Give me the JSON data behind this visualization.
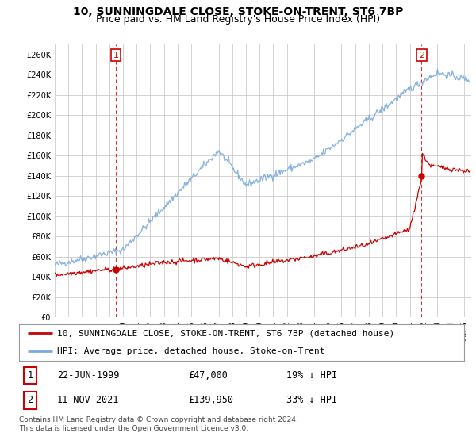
{
  "title": "10, SUNNINGDALE CLOSE, STOKE-ON-TRENT, ST6 7BP",
  "subtitle": "Price paid vs. HM Land Registry's House Price Index (HPI)",
  "ylabel_vals": [
    0,
    20000,
    40000,
    60000,
    80000,
    100000,
    120000,
    140000,
    160000,
    180000,
    200000,
    220000,
    240000,
    260000
  ],
  "ylim": [
    0,
    270000
  ],
  "xlim_start": 1995.0,
  "xlim_end": 2025.5,
  "bg_color": "#ffffff",
  "grid_color": "#cccccc",
  "hpi_color": "#7aaadd",
  "sale_color": "#cc0000",
  "purchase1_date": 1999.47,
  "purchase1_price": 47000,
  "purchase2_date": 2021.86,
  "purchase2_price": 139950,
  "legend_entry1": "10, SUNNINGDALE CLOSE, STOKE-ON-TRENT, ST6 7BP (detached house)",
  "legend_entry2": "HPI: Average price, detached house, Stoke-on-Trent",
  "note1_label": "1",
  "note1_date": "22-JUN-1999",
  "note1_price": "£47,000",
  "note1_hpi": "19% ↓ HPI",
  "note2_label": "2",
  "note2_date": "11-NOV-2021",
  "note2_price": "£139,950",
  "note2_hpi": "33% ↓ HPI",
  "footer": "Contains HM Land Registry data © Crown copyright and database right 2024.\nThis data is licensed under the Open Government Licence v3.0.",
  "title_fontsize": 10,
  "subtitle_fontsize": 9,
  "tick_fontsize": 7,
  "legend_fontsize": 8
}
